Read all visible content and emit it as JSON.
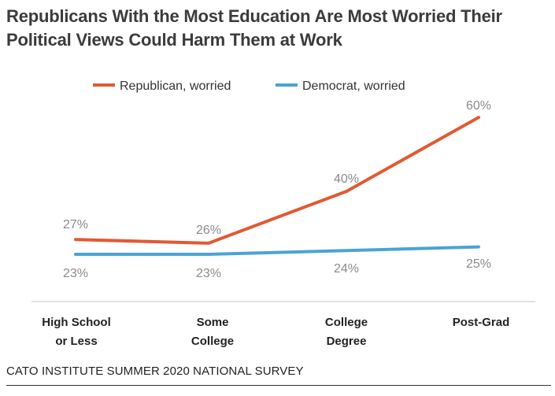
{
  "title": {
    "line1": "Republicans With the Most Education Are Most Worried Their",
    "line2": "Political Views Could Harm Them at Work"
  },
  "chart_data": {
    "type": "line",
    "categories": [
      [
        "High School",
        "or Less"
      ],
      [
        "Some",
        "College"
      ],
      [
        "College",
        "Degree"
      ],
      [
        "Post-Grad"
      ]
    ],
    "series": [
      {
        "name": "Republican, worried",
        "values": [
          27,
          26,
          40,
          60
        ],
        "labels": [
          "27%",
          "26%",
          "40%",
          "60%"
        ],
        "color": "#e05a33"
      },
      {
        "name": "Democrat, worried",
        "values": [
          23,
          23,
          24,
          25
        ],
        "labels": [
          "23%",
          "23%",
          "24%",
          "25%"
        ],
        "color": "#4aa3d6"
      }
    ],
    "legend_position": "top",
    "grid": false
  },
  "colors": {
    "axis": "#d9d9d9",
    "value_label": "#8a8a8a",
    "category_label": "#222222"
  },
  "source": "CATO INSTITUTE SUMMER 2020 NATIONAL SURVEY"
}
